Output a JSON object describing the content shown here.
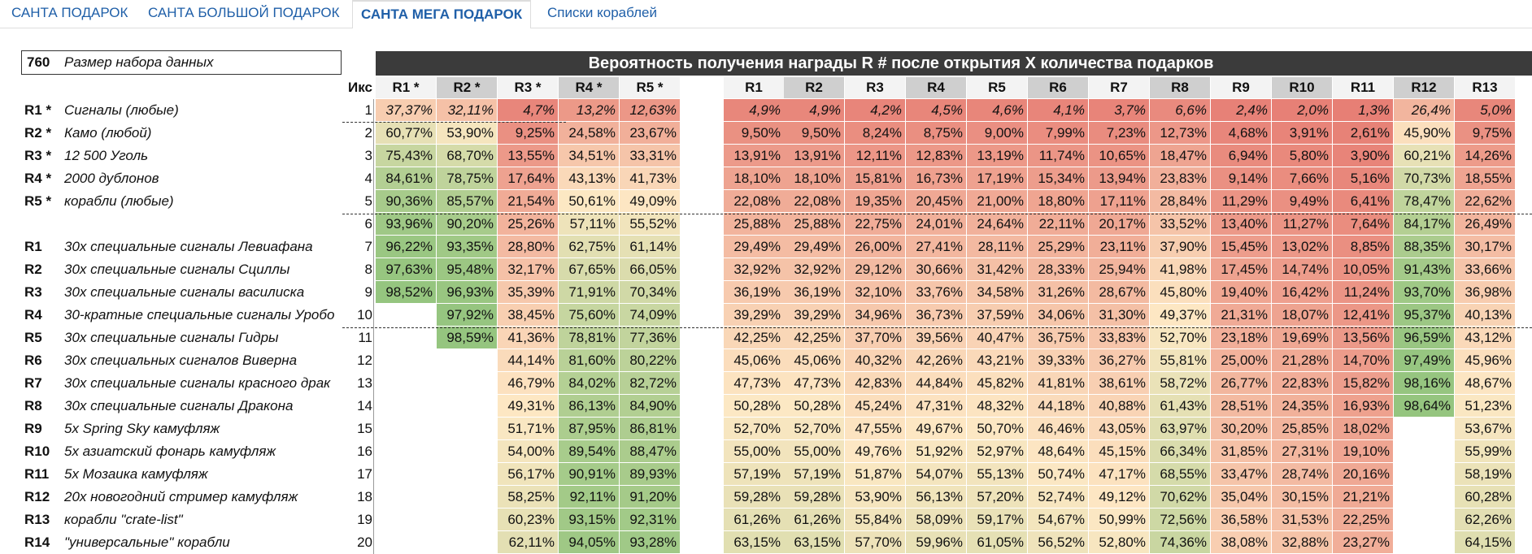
{
  "tabs": [
    {
      "label": "САНТА ПОДАРОК",
      "active": false
    },
    {
      "label": "САНТА БОЛЬШОЙ ПОДАРОК",
      "active": false
    },
    {
      "label": "САНТА МЕГА ПОДАРОК",
      "active": true
    },
    {
      "label": "Списки кораблей",
      "active": false
    }
  ],
  "dataset": {
    "size": "760",
    "label": "Размер набора данных"
  },
  "header": {
    "title": "Вероятность получения награды R # после открытия X количества подарков",
    "iks_label": "Икс"
  },
  "legend": [
    {
      "code": "R1 *",
      "desc": "Сигналы (любые)"
    },
    {
      "code": "R2 *",
      "desc": "Камо (любой)"
    },
    {
      "code": "R3 *",
      "desc": "12 500 Уголь"
    },
    {
      "code": "R4 *",
      "desc": "2000 дублонов"
    },
    {
      "code": "R5 *",
      "desc": "корабли (любые)"
    },
    {
      "code": "",
      "desc": ""
    },
    {
      "code": "R1",
      "desc": "30x специальные сигналы Левиафана"
    },
    {
      "code": "R2",
      "desc": "30x специальные сигналы Сциллы"
    },
    {
      "code": "R3",
      "desc": "30x специальные сигналы василиска"
    },
    {
      "code": "R4",
      "desc": "30-кратные специальные сигналы Уробо"
    },
    {
      "code": "R5",
      "desc": "30x специальные сигналы Гидры"
    },
    {
      "code": "R6",
      "desc": "30x специальных сигналов Виверна"
    },
    {
      "code": "R7",
      "desc": "30x специальные сигналы красного драк"
    },
    {
      "code": "R8",
      "desc": "30x специальные сигналы Дракона"
    },
    {
      "code": "R9",
      "desc": "5x Spring Sky камуфляж"
    },
    {
      "code": "R10",
      "desc": "5x азиатский фонарь камуфляж"
    },
    {
      "code": "R11",
      "desc": "5x Мозаика камуфляж"
    },
    {
      "code": "R12",
      "desc": "20x новогодний стример камуфляж"
    },
    {
      "code": "R13",
      "desc": "корабли \"crate-list\""
    },
    {
      "code": "R14",
      "desc": "\"универсальные\" корабли"
    }
  ],
  "left_columns": [
    "R1 *",
    "R2 *",
    "R3 *",
    "R4 *",
    "R5 *"
  ],
  "right_columns": [
    "R1",
    "R2",
    "R3",
    "R4",
    "R5",
    "R6",
    "R7",
    "R8",
    "R9",
    "R10",
    "R11",
    "R12",
    "R13"
  ],
  "rows": [
    {
      "x": "1",
      "left": [
        "37,37%",
        "32,11%",
        "4,7%",
        "13,2%",
        "12,63%"
      ],
      "right": [
        "4,9%",
        "4,9%",
        "4,2%",
        "4,5%",
        "4,6%",
        "4,1%",
        "3,7%",
        "6,6%",
        "2,4%",
        "2,0%",
        "1,3%",
        "26,4%",
        "5,0%"
      ]
    },
    {
      "x": "2",
      "left": [
        "60,77%",
        "53,90%",
        "9,25%",
        "24,58%",
        "23,67%"
      ],
      "right": [
        "9,50%",
        "9,50%",
        "8,24%",
        "8,75%",
        "9,00%",
        "7,99%",
        "7,23%",
        "12,73%",
        "4,68%",
        "3,91%",
        "2,61%",
        "45,90%",
        "9,75%"
      ]
    },
    {
      "x": "3",
      "left": [
        "75,43%",
        "68,70%",
        "13,55%",
        "34,51%",
        "33,31%"
      ],
      "right": [
        "13,91%",
        "13,91%",
        "12,11%",
        "12,83%",
        "13,19%",
        "11,74%",
        "10,65%",
        "18,47%",
        "6,94%",
        "5,80%",
        "3,90%",
        "60,21%",
        "14,26%"
      ]
    },
    {
      "x": "4",
      "left": [
        "84,61%",
        "78,75%",
        "17,64%",
        "43,13%",
        "41,73%"
      ],
      "right": [
        "18,10%",
        "18,10%",
        "15,81%",
        "16,73%",
        "17,19%",
        "15,34%",
        "13,94%",
        "23,83%",
        "9,14%",
        "7,66%",
        "5,16%",
        "70,73%",
        "18,55%"
      ]
    },
    {
      "x": "5",
      "left": [
        "90,36%",
        "85,57%",
        "21,54%",
        "50,61%",
        "49,09%"
      ],
      "right": [
        "22,08%",
        "22,08%",
        "19,35%",
        "20,45%",
        "21,00%",
        "18,80%",
        "17,11%",
        "28,84%",
        "11,29%",
        "9,49%",
        "6,41%",
        "78,47%",
        "22,62%"
      ]
    },
    {
      "x": "6",
      "left": [
        "93,96%",
        "90,20%",
        "25,26%",
        "57,11%",
        "55,52%"
      ],
      "right": [
        "25,88%",
        "25,88%",
        "22,75%",
        "24,01%",
        "24,64%",
        "22,11%",
        "20,17%",
        "33,52%",
        "13,40%",
        "11,27%",
        "7,64%",
        "84,17%",
        "26,49%"
      ]
    },
    {
      "x": "7",
      "left": [
        "96,22%",
        "93,35%",
        "28,80%",
        "62,75%",
        "61,14%"
      ],
      "right": [
        "29,49%",
        "29,49%",
        "26,00%",
        "27,41%",
        "28,11%",
        "25,29%",
        "23,11%",
        "37,90%",
        "15,45%",
        "13,02%",
        "8,85%",
        "88,35%",
        "30,17%"
      ]
    },
    {
      "x": "8",
      "left": [
        "97,63%",
        "95,48%",
        "32,17%",
        "67,65%",
        "66,05%"
      ],
      "right": [
        "32,92%",
        "32,92%",
        "29,12%",
        "30,66%",
        "31,42%",
        "28,33%",
        "25,94%",
        "41,98%",
        "17,45%",
        "14,74%",
        "10,05%",
        "91,43%",
        "33,66%"
      ]
    },
    {
      "x": "9",
      "left": [
        "98,52%",
        "96,93%",
        "35,39%",
        "71,91%",
        "70,34%"
      ],
      "right": [
        "36,19%",
        "36,19%",
        "32,10%",
        "33,76%",
        "34,58%",
        "31,26%",
        "28,67%",
        "45,80%",
        "19,40%",
        "16,42%",
        "11,24%",
        "93,70%",
        "36,98%"
      ]
    },
    {
      "x": "10",
      "left": [
        "",
        "97,92%",
        "38,45%",
        "75,60%",
        "74,09%"
      ],
      "right": [
        "39,29%",
        "39,29%",
        "34,96%",
        "36,73%",
        "37,59%",
        "34,06%",
        "31,30%",
        "49,37%",
        "21,31%",
        "18,07%",
        "12,41%",
        "95,37%",
        "40,13%"
      ]
    },
    {
      "x": "11",
      "left": [
        "",
        "98,59%",
        "41,36%",
        "78,81%",
        "77,36%"
      ],
      "right": [
        "42,25%",
        "42,25%",
        "37,70%",
        "39,56%",
        "40,47%",
        "36,75%",
        "33,83%",
        "52,70%",
        "23,18%",
        "19,69%",
        "13,56%",
        "96,59%",
        "43,12%"
      ]
    },
    {
      "x": "12",
      "left": [
        "",
        "",
        "44,14%",
        "81,60%",
        "80,22%"
      ],
      "right": [
        "45,06%",
        "45,06%",
        "40,32%",
        "42,26%",
        "43,21%",
        "39,33%",
        "36,27%",
        "55,81%",
        "25,00%",
        "21,28%",
        "14,70%",
        "97,49%",
        "45,96%"
      ]
    },
    {
      "x": "13",
      "left": [
        "",
        "",
        "46,79%",
        "84,02%",
        "82,72%"
      ],
      "right": [
        "47,73%",
        "47,73%",
        "42,83%",
        "44,84%",
        "45,82%",
        "41,81%",
        "38,61%",
        "58,72%",
        "26,77%",
        "22,83%",
        "15,82%",
        "98,16%",
        "48,67%"
      ]
    },
    {
      "x": "14",
      "left": [
        "",
        "",
        "49,31%",
        "86,13%",
        "84,90%"
      ],
      "right": [
        "50,28%",
        "50,28%",
        "45,24%",
        "47,31%",
        "48,32%",
        "44,18%",
        "40,88%",
        "61,43%",
        "28,51%",
        "24,35%",
        "16,93%",
        "98,64%",
        "51,23%"
      ]
    },
    {
      "x": "15",
      "left": [
        "",
        "",
        "51,71%",
        "87,95%",
        "86,81%"
      ],
      "right": [
        "52,70%",
        "52,70%",
        "47,55%",
        "49,67%",
        "50,70%",
        "46,46%",
        "43,05%",
        "63,97%",
        "30,20%",
        "25,85%",
        "18,02%",
        "",
        "53,67%"
      ]
    },
    {
      "x": "16",
      "left": [
        "",
        "",
        "54,00%",
        "89,54%",
        "88,47%"
      ],
      "right": [
        "55,00%",
        "55,00%",
        "49,76%",
        "51,92%",
        "52,97%",
        "48,64%",
        "45,15%",
        "66,34%",
        "31,85%",
        "27,31%",
        "19,10%",
        "",
        "55,99%"
      ]
    },
    {
      "x": "17",
      "left": [
        "",
        "",
        "56,17%",
        "90,91%",
        "89,93%"
      ],
      "right": [
        "57,19%",
        "57,19%",
        "51,87%",
        "54,07%",
        "55,13%",
        "50,74%",
        "47,17%",
        "68,55%",
        "33,47%",
        "28,74%",
        "20,16%",
        "",
        "58,19%"
      ]
    },
    {
      "x": "18",
      "left": [
        "",
        "",
        "58,25%",
        "92,11%",
        "91,20%"
      ],
      "right": [
        "59,28%",
        "59,28%",
        "53,90%",
        "56,13%",
        "57,20%",
        "52,74%",
        "49,12%",
        "70,62%",
        "35,04%",
        "30,15%",
        "21,21%",
        "",
        "60,28%"
      ]
    },
    {
      "x": "19",
      "left": [
        "",
        "",
        "60,23%",
        "93,15%",
        "92,31%"
      ],
      "right": [
        "61,26%",
        "61,26%",
        "55,84%",
        "58,09%",
        "59,17%",
        "54,67%",
        "50,99%",
        "72,56%",
        "36,58%",
        "31,53%",
        "22,25%",
        "",
        "62,26%"
      ]
    },
    {
      "x": "20",
      "left": [
        "",
        "",
        "62,11%",
        "94,05%",
        "93,28%"
      ],
      "right": [
        "63,15%",
        "63,15%",
        "57,70%",
        "59,96%",
        "61,05%",
        "56,52%",
        "52,80%",
        "74,36%",
        "38,08%",
        "32,88%",
        "23,27%",
        "",
        "64,15%"
      ]
    }
  ],
  "colors": {
    "low": "#e67c73",
    "mid": "#fde8c4",
    "high": "#92c47d",
    "header_bar": "#3b3b3b"
  }
}
